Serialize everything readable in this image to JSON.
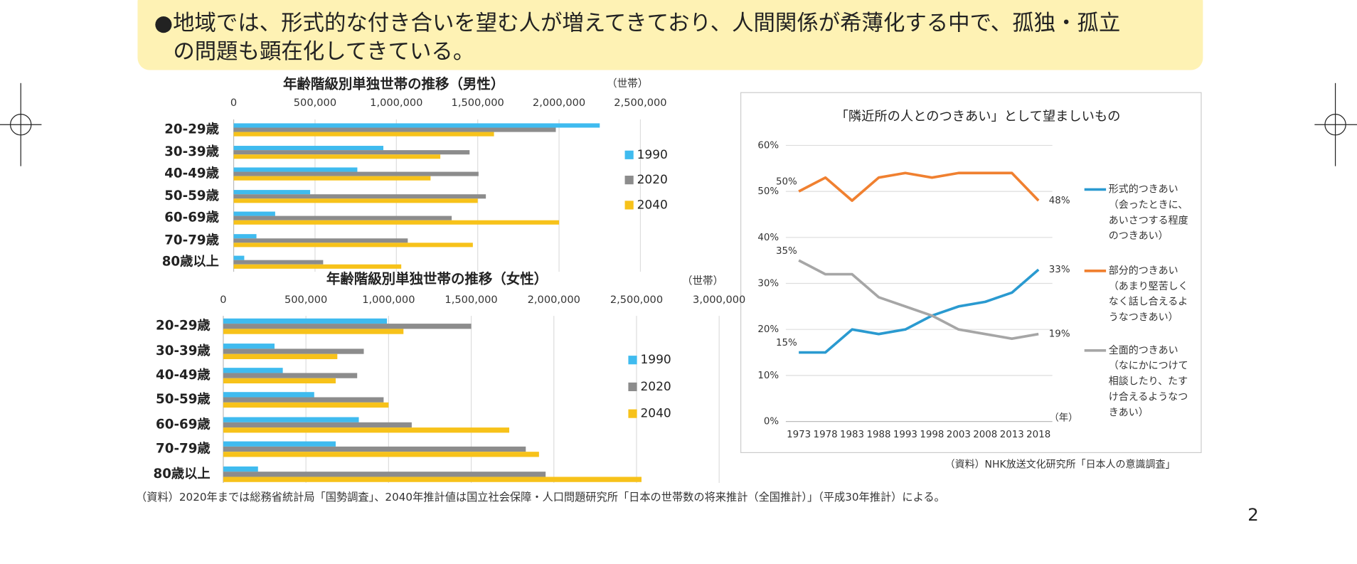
{
  "banner": {
    "lines": [
      "●地域では、形式的な付き合いを望む人が増えてきており、人間関係が希薄化する中で、孤独・孤立",
      "の問題も顕在化してきている。"
    ]
  },
  "chart_data": [
    {
      "type": "bar",
      "orientation": "horizontal",
      "title": "年齢階級別単独世帯の推移（男性）",
      "unit": "（世帯）",
      "categories": [
        "20-29歳",
        "30-39歳",
        "40-49歳",
        "50-59歳",
        "60-69歳",
        "70-79歳",
        "80歳以上"
      ],
      "series": [
        {
          "name": "1990",
          "color": "#3fbbef",
          "values": [
            2250000,
            920000,
            760000,
            470000,
            255000,
            140000,
            65000
          ]
        },
        {
          "name": "2020",
          "color": "#8c8c8c",
          "values": [
            1980000,
            1450000,
            1505000,
            1550000,
            1340000,
            1070000,
            550000
          ]
        },
        {
          "name": "2040",
          "color": "#f7c21a",
          "values": [
            1600000,
            1270000,
            1210000,
            1500000,
            2000000,
            1470000,
            1030000
          ]
        }
      ],
      "xlim": [
        0,
        2500000
      ],
      "xticks": [
        0,
        {
          "value": 500000,
          "label": "500,000"
        },
        {
          "value": 1000000,
          "label": "1,000,000"
        },
        {
          "value": 1500000,
          "label": "1,500,000"
        },
        {
          "value": 2000000,
          "label": "2,000,000"
        },
        {
          "value": 2500000,
          "label": "2,500,000"
        }
      ],
      "grid": true,
      "legend": "right"
    },
    {
      "type": "bar",
      "orientation": "horizontal",
      "title": "年齢階級別単独世帯の推移（女性）",
      "unit": "（世帯）",
      "categories": [
        "20-29歳",
        "30-39歳",
        "40-49歳",
        "50-59歳",
        "60-69歳",
        "70-79歳",
        "80歳以上"
      ],
      "series": [
        {
          "name": "1990",
          "color": "#3fbbef",
          "values": [
            990000,
            310000,
            360000,
            550000,
            820000,
            680000,
            210000
          ]
        },
        {
          "name": "2020",
          "color": "#8c8c8c",
          "values": [
            1500000,
            850000,
            810000,
            970000,
            1140000,
            1830000,
            1950000
          ]
        },
        {
          "name": "2040",
          "color": "#f7c21a",
          "values": [
            1090000,
            690000,
            680000,
            1000000,
            1730000,
            1910000,
            2530000
          ]
        }
      ],
      "xlim": [
        0,
        3000000
      ],
      "xticks": [
        0,
        {
          "value": 500000,
          "label": "500,000"
        },
        {
          "value": 1000000,
          "label": "1,000,000"
        },
        {
          "value": 1500000,
          "label": "1,500,000"
        },
        {
          "value": 2000000,
          "label": "2,000,000"
        },
        {
          "value": 2500000,
          "label": "2,500,000"
        },
        {
          "value": 3000000,
          "label": "3,000,000"
        }
      ],
      "grid": true,
      "legend": "right"
    },
    {
      "type": "line",
      "title": "「隣近所の人とのつきあい」として望ましいもの",
      "x_unit": "（年）",
      "categories": [
        "1973",
        "1978",
        "1983",
        "1988",
        "1993",
        "1998",
        "2003",
        "2008",
        "2013",
        "2018"
      ],
      "series": [
        {
          "name": "形式的つきあい",
          "note_lines": [
            "（会ったときに、",
            "あいさつする程度",
            "のつきあい）"
          ],
          "color": "#2a9ad0",
          "values": [
            15,
            15,
            20,
            19,
            20,
            23,
            25,
            26,
            28,
            33
          ],
          "value_labels": [
            "15%",
            null,
            null,
            null,
            null,
            null,
            null,
            null,
            null,
            "33%"
          ]
        },
        {
          "name": "部分的つきあい",
          "note_lines": [
            "（あまり堅苦しく",
            "なく話し合えるよ",
            "うなつきあい）"
          ],
          "color": "#f08030",
          "values": [
            50,
            53,
            48,
            53,
            54,
            53,
            54,
            54,
            54,
            48
          ],
          "value_labels": [
            "50%",
            null,
            null,
            null,
            null,
            null,
            null,
            null,
            null,
            "48%"
          ]
        },
        {
          "name": "全面的つきあい",
          "note_lines": [
            "（なにかにつけて",
            "相談したり、たす",
            "け合えるようなつ",
            "きあい）"
          ],
          "color": "#a6a6a6",
          "values": [
            35,
            32,
            32,
            27,
            25,
            23,
            20,
            19,
            18,
            19
          ],
          "value_labels": [
            "35%",
            null,
            null,
            null,
            null,
            null,
            null,
            null,
            null,
            "19%"
          ]
        }
      ],
      "ylim": [
        0,
        60
      ],
      "yticks": [
        {
          "value": 0,
          "label": "0%"
        },
        {
          "value": 10,
          "label": "10%"
        },
        {
          "value": 20,
          "label": "20%"
        },
        {
          "value": 30,
          "label": "30%"
        },
        {
          "value": 40,
          "label": "40%"
        },
        {
          "value": 50,
          "label": "50%"
        },
        {
          "value": 60,
          "label": "60%"
        }
      ],
      "grid": true,
      "legend": "right"
    }
  ],
  "source_right": "（資料）NHK放送文化研究所「日本人の意識調査」",
  "source_bottom": "（資料）2020年までは総務省統計局「国勢調査」、2040年推計値は国立社会保障・人口問題研究所「日本の世帯数の将来推計（全国推計）」（平成30年推計）による。",
  "page_number": "2"
}
